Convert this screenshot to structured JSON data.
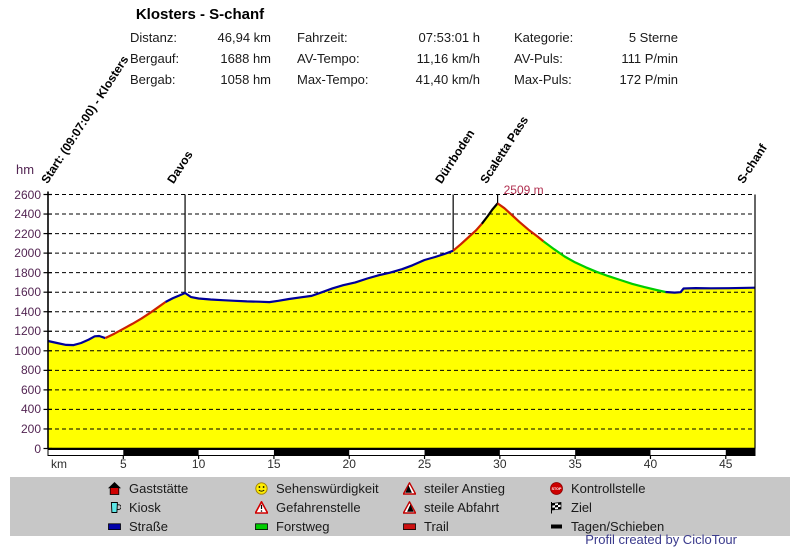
{
  "title": "Klosters - S-chanf",
  "stats": {
    "col1": [
      {
        "label": "Distanz:",
        "value": "46,94 km"
      },
      {
        "label": "Bergauf:",
        "value": "1688 hm"
      },
      {
        "label": "Bergab:",
        "value": "1058 hm"
      }
    ],
    "col2": [
      {
        "label": "Fahrzeit:",
        "value": "07:53:01 h"
      },
      {
        "label": "AV-Tempo:",
        "value": "11,16 km/h"
      },
      {
        "label": "Max-Tempo:",
        "value": "41,40 km/h"
      }
    ],
    "col3": [
      {
        "label": "Kategorie:",
        "value": "5 Sterne"
      },
      {
        "label": "AV-Puls:",
        "value": "111 P/min"
      },
      {
        "label": "Max-Puls:",
        "value": "172 P/min"
      }
    ]
  },
  "chart_data": {
    "type": "area",
    "title": "Klosters - S-chanf",
    "xlabel": "km",
    "ylabel": "hm",
    "xlim": [
      0,
      46.94
    ],
    "ylim": [
      0,
      2600
    ],
    "y_ticks": [
      0,
      200,
      400,
      600,
      800,
      1000,
      1200,
      1400,
      1600,
      1800,
      2000,
      2200,
      2400,
      2600
    ],
    "x_ticks": [
      5,
      10,
      15,
      20,
      25,
      30,
      35,
      40,
      45
    ],
    "grid": "dashed-horizontal",
    "legend_position": "bottom",
    "colors": {
      "fill": "#ffff00",
      "road": "#000099",
      "trail": "#cc2200",
      "forest_track": "#00cc00",
      "push": "#000000",
      "grid": "#000000",
      "y_labels": "#532553",
      "x_labels": "#2e2e2e",
      "peak_label": "#b03050",
      "legend_bg": "#c7c7c7",
      "credit": "#3a3a8c"
    },
    "scale_bar": {
      "unit": "km",
      "interval": 5,
      "pattern": [
        "white",
        "black"
      ]
    },
    "segments": [
      {
        "surface": "Straße",
        "color": "#000099",
        "points": [
          [
            0,
            1100
          ],
          [
            0.6,
            1080
          ],
          [
            1.2,
            1060
          ],
          [
            1.7,
            1058
          ],
          [
            2.2,
            1080
          ],
          [
            2.7,
            1115
          ],
          [
            3.1,
            1148
          ],
          [
            3.4,
            1152
          ],
          [
            3.8,
            1130
          ]
        ]
      },
      {
        "surface": "Trail",
        "color": "#cc2200",
        "points": [
          [
            3.8,
            1130
          ],
          [
            4.4,
            1175
          ],
          [
            5.0,
            1225
          ],
          [
            5.6,
            1275
          ],
          [
            6.2,
            1330
          ],
          [
            6.8,
            1390
          ],
          [
            7.3,
            1445
          ],
          [
            7.8,
            1500
          ]
        ]
      },
      {
        "surface": "Straße",
        "color": "#000099",
        "points": [
          [
            7.8,
            1500
          ],
          [
            8.3,
            1540
          ],
          [
            8.7,
            1565
          ],
          [
            9.1,
            1592
          ],
          [
            9.5,
            1550
          ],
          [
            10.0,
            1535
          ],
          [
            10.8,
            1525
          ],
          [
            11.6,
            1518
          ],
          [
            12.4,
            1512
          ],
          [
            13.2,
            1506
          ],
          [
            14.0,
            1503
          ],
          [
            14.7,
            1499
          ],
          [
            15.3,
            1512
          ],
          [
            16.0,
            1530
          ],
          [
            16.8,
            1548
          ],
          [
            17.5,
            1562
          ],
          [
            18.2,
            1600
          ],
          [
            18.9,
            1640
          ],
          [
            19.6,
            1672
          ],
          [
            20.4,
            1700
          ],
          [
            21.2,
            1740
          ],
          [
            22.0,
            1775
          ],
          [
            22.7,
            1800
          ],
          [
            23.5,
            1835
          ],
          [
            24.2,
            1875
          ],
          [
            25.0,
            1930
          ],
          [
            25.7,
            1960
          ],
          [
            26.3,
            1990
          ],
          [
            26.9,
            2025
          ]
        ]
      },
      {
        "surface": "Trail",
        "color": "#cc2200",
        "points": [
          [
            26.9,
            2025
          ],
          [
            27.4,
            2090
          ],
          [
            27.9,
            2160
          ],
          [
            28.4,
            2230
          ],
          [
            28.8,
            2300
          ]
        ]
      },
      {
        "surface": "Tagen/Schieben",
        "color": "#000000",
        "points": [
          [
            28.8,
            2300
          ],
          [
            29.2,
            2380
          ],
          [
            29.5,
            2445
          ],
          [
            29.85,
            2509
          ]
        ]
      },
      {
        "surface": "Trail",
        "color": "#cc2200",
        "points": [
          [
            29.85,
            2509
          ],
          [
            30.3,
            2460
          ],
          [
            30.8,
            2390
          ],
          [
            31.3,
            2320
          ],
          [
            31.9,
            2240
          ],
          [
            32.5,
            2170
          ],
          [
            32.9,
            2120
          ]
        ]
      },
      {
        "surface": "Forstweg",
        "color": "#00cc00",
        "points": [
          [
            32.9,
            2120
          ],
          [
            33.6,
            2040
          ],
          [
            34.3,
            1965
          ],
          [
            35.0,
            1905
          ],
          [
            35.7,
            1855
          ],
          [
            36.4,
            1810
          ],
          [
            37.2,
            1765
          ],
          [
            38.0,
            1725
          ],
          [
            38.8,
            1685
          ],
          [
            39.6,
            1652
          ],
          [
            40.4,
            1622
          ],
          [
            41.0,
            1602
          ]
        ]
      },
      {
        "surface": "Straße",
        "color": "#000099",
        "points": [
          [
            41.0,
            1602
          ],
          [
            41.6,
            1596
          ],
          [
            42.0,
            1600
          ],
          [
            42.2,
            1638
          ],
          [
            43.0,
            1642
          ],
          [
            44.0,
            1640
          ],
          [
            45.2,
            1641
          ],
          [
            46.94,
            1646
          ]
        ]
      }
    ],
    "markers": [
      {
        "label": "Start: (09:07:00) - Klosters",
        "km": 0,
        "line": false
      },
      {
        "label": "Davos",
        "km": 9.1,
        "line": true,
        "top_hm": 1592
      },
      {
        "label": "Dürrboden",
        "km": 26.9,
        "line": true,
        "top_hm": 2025
      },
      {
        "label": "Scaletta Pass",
        "km": 29.85,
        "line": true,
        "top_hm": 2509
      },
      {
        "label": "S-chanf",
        "km": 46.94,
        "line": false
      }
    ],
    "peak_annotation": {
      "text": "2509 m",
      "km": 29.85,
      "hm": 2509
    }
  },
  "legend": {
    "columns": [
      {
        "items": [
          {
            "icon": "gaststaette-icon",
            "label": "Gaststätte"
          },
          {
            "icon": "kiosk-icon",
            "label": "Kiosk"
          },
          {
            "icon": "strasse-swatch",
            "label": "Straße"
          }
        ]
      },
      {
        "items": [
          {
            "icon": "sehenswuerdigkeit-icon",
            "label": "Sehenswürdigkeit"
          },
          {
            "icon": "gefahrenstelle-icon",
            "label": "Gefahrenstelle"
          },
          {
            "icon": "forstweg-swatch",
            "label": "Forstweg"
          }
        ]
      },
      {
        "items": [
          {
            "icon": "steiler-anstieg-icon",
            "label": "steiler Anstieg"
          },
          {
            "icon": "steile-abfahrt-icon",
            "label": "steile Abfahrt"
          },
          {
            "icon": "trail-swatch",
            "label": "Trail"
          }
        ]
      },
      {
        "items": [
          {
            "icon": "kontrollstelle-icon",
            "label": "Kontrollstelle"
          },
          {
            "icon": "ziel-icon",
            "label": "Ziel"
          },
          {
            "icon": "tagen-schieben-swatch",
            "label": "Tagen/Schieben"
          }
        ]
      }
    ]
  },
  "footer": {
    "credit": "Profil created by CicloTour"
  }
}
